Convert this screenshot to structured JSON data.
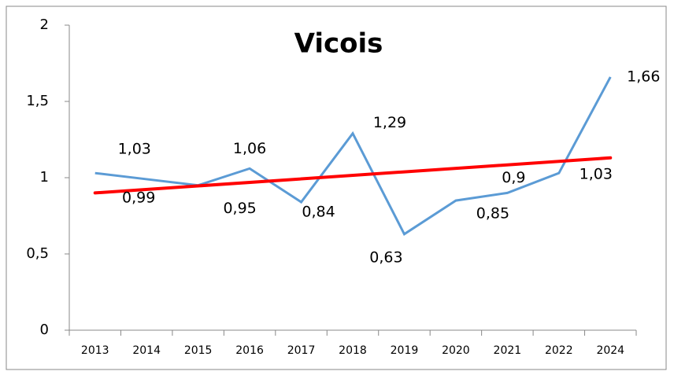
{
  "chart_data": {
    "type": "line",
    "title": "Vicois",
    "categories": [
      "2013",
      "2014",
      "2015",
      "2016",
      "2017",
      "2018",
      "2019",
      "2020",
      "2021",
      "2022",
      "2024"
    ],
    "series": [
      {
        "color": "#5b9bd5",
        "values": [
          1.03,
          0.99,
          0.95,
          1.06,
          0.84,
          1.29,
          0.63,
          0.85,
          0.9,
          1.03,
          1.66
        ],
        "value_labels": [
          "1,03",
          "0,99",
          "0,95",
          "1,06",
          "0,84",
          "1,29",
          "0,63",
          "0,85",
          "0,9",
          "1,03",
          "1,66"
        ]
      }
    ],
    "trendline": {
      "color": "#ff0000",
      "start": 0.9,
      "end": 1.13
    },
    "ylim": [
      0,
      2
    ],
    "yticks": [
      0,
      {
        "value": 0.5,
        "label": "0,5"
      },
      1,
      {
        "value": 1.5,
        "label": "1,5"
      },
      2
    ]
  }
}
